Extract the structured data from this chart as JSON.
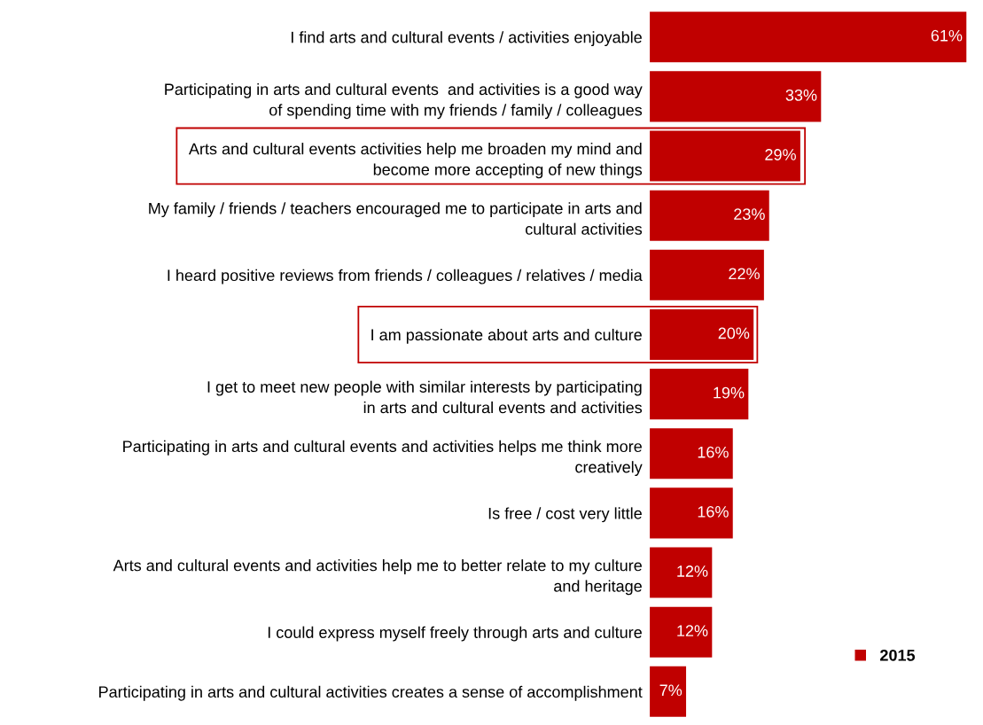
{
  "chart_data": {
    "type": "bar",
    "orientation": "horizontal",
    "categories": [
      "I find arts and cultural events / activities enjoyable",
      "Participating in arts and cultural events  and activities is a good way\nof spending time with my friends / family / colleagues",
      "Arts and cultural events activities help me broaden my mind and\nbecome more accepting of new things",
      "My family / friends / teachers encouraged me to participate in arts and\ncultural activities",
      "I heard positive reviews from friends / colleagues / relatives / media",
      "I am passionate about arts and culture",
      "I get to meet new people with similar interests by participating\nin arts and cultural events and activities",
      "Participating in arts and cultural events and activities helps me think more\ncreatively",
      "Is free / cost very little",
      "Arts and cultural events and activities help me to better relate to my culture\nand heritage",
      "I could express myself freely through arts and culture",
      "Participating in arts and cultural activities creates a sense of accomplishment"
    ],
    "series": [
      {
        "name": "2015",
        "color": "#c00000",
        "values": [
          61,
          33,
          29,
          23,
          22,
          20,
          19,
          16,
          16,
          12,
          12,
          7
        ],
        "value_labels": [
          "61%",
          "33%",
          "29%",
          "23%",
          "22%",
          "20%",
          "19%",
          "16%",
          "16%",
          "12%",
          "12%",
          "7%"
        ]
      }
    ],
    "legend": "bottom right",
    "grid": false
  }
}
